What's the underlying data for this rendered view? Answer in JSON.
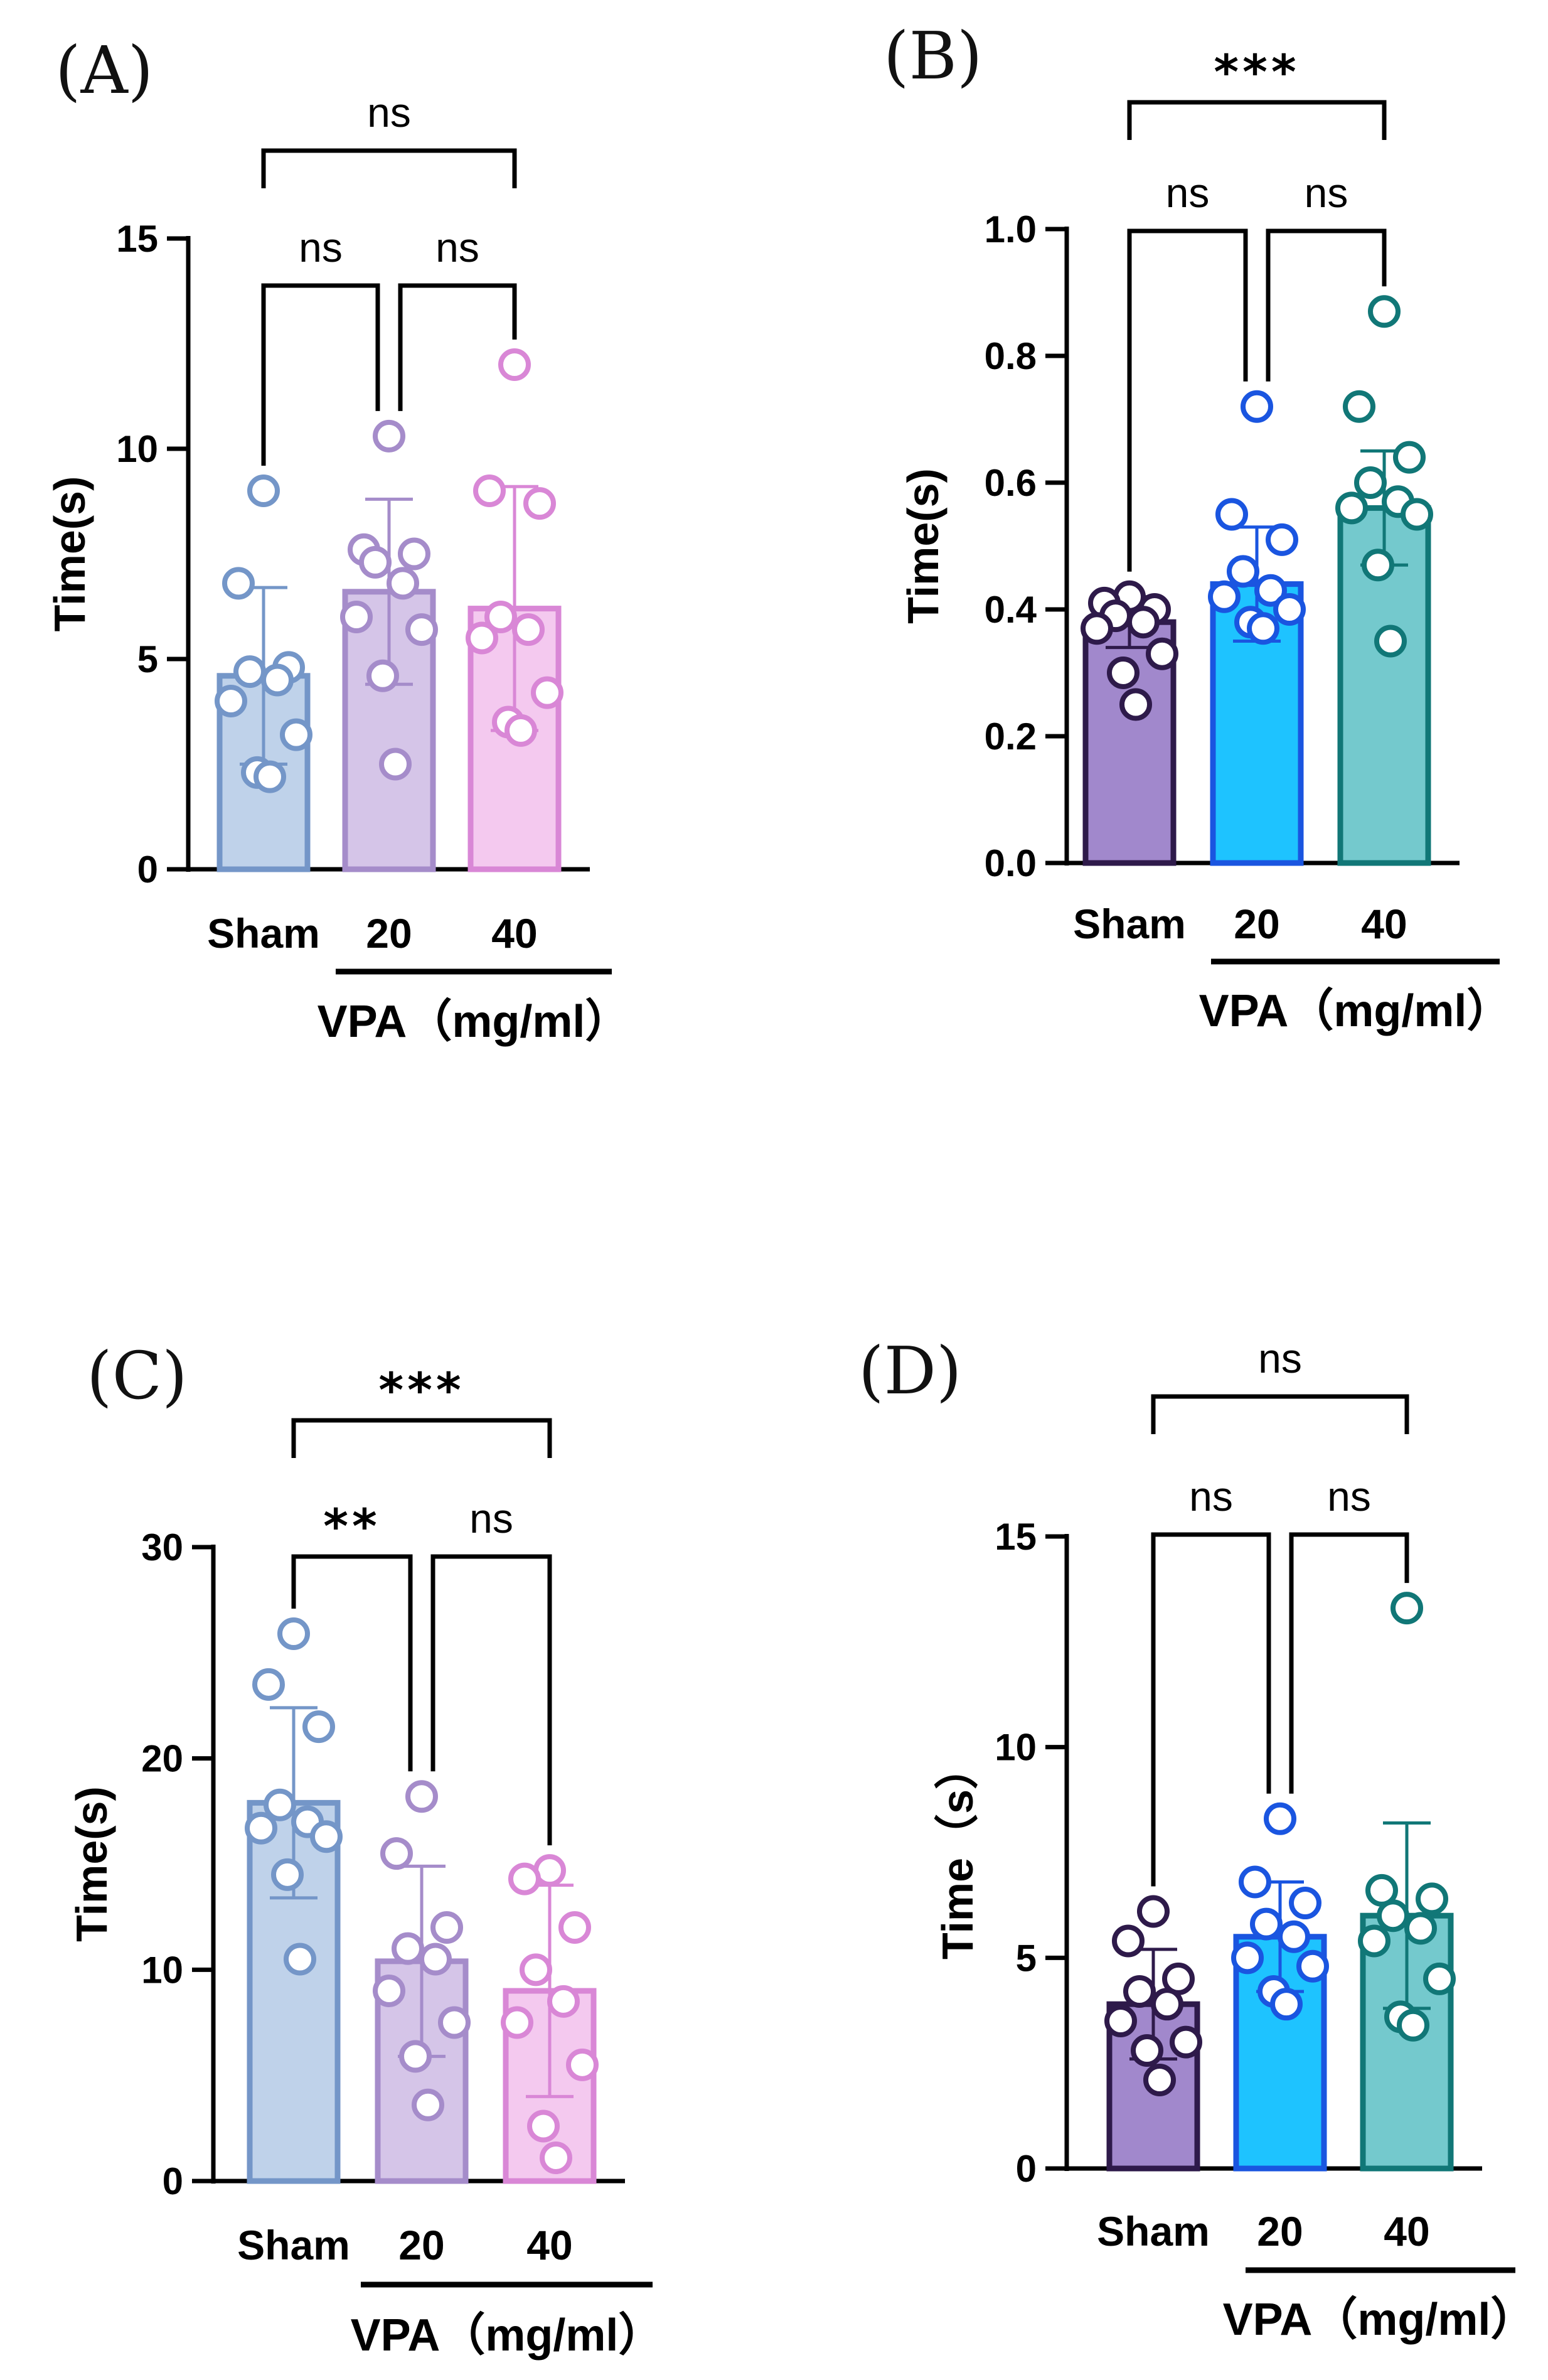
{
  "chart_data": [
    {
      "panel": "(A)",
      "type": "bar",
      "ylabel": "Time(s)",
      "ylim": [
        0,
        15
      ],
      "yticks": [
        "0",
        "5",
        "10",
        "15"
      ],
      "categories": [
        "Sham",
        "20",
        "40"
      ],
      "group_label": "VPA（mg/ml）",
      "means": [
        4.6,
        6.6,
        6.2
      ],
      "sd": [
        2.1,
        2.2,
        2.9
      ],
      "points": [
        [
          9.0,
          6.8,
          4.8,
          4.7,
          4.5,
          4.0,
          3.2,
          2.3,
          2.2
        ],
        [
          10.3,
          7.6,
          7.5,
          7.3,
          6.8,
          6.0,
          5.7,
          4.6,
          2.5
        ],
        [
          12.0,
          9.0,
          8.7,
          6.0,
          5.7,
          5.5,
          4.2,
          3.5,
          3.3
        ]
      ],
      "significance": [
        {
          "from": 0,
          "to": 1,
          "label": "ns"
        },
        {
          "from": 1,
          "to": 2,
          "label": "ns"
        },
        {
          "from": 0,
          "to": 2,
          "label": "ns"
        }
      ],
      "colors": {
        "fill": [
          "#bfd2ea",
          "#d5c5e8",
          "#f4c9ef"
        ],
        "stroke": [
          "#7496c8",
          "#a58cca",
          "#d987d6"
        ]
      }
    },
    {
      "panel": "(B)",
      "type": "bar",
      "ylabel": "Time(s)",
      "ylim": [
        0,
        1.0
      ],
      "yticks": [
        "0.0",
        "0.2",
        "0.4",
        "0.6",
        "0.8",
        "1.0"
      ],
      "categories": [
        "Sham",
        "20",
        "40"
      ],
      "group_label": "VPA（mg/ml）",
      "means": [
        0.38,
        0.44,
        0.56
      ],
      "sd": [
        0.04,
        0.09,
        0.09
      ],
      "points": [
        [
          0.42,
          0.41,
          0.4,
          0.39,
          0.38,
          0.37,
          0.33,
          0.3,
          0.25
        ],
        [
          0.72,
          0.55,
          0.51,
          0.46,
          0.43,
          0.42,
          0.4,
          0.38,
          0.37
        ],
        [
          0.87,
          0.72,
          0.64,
          0.6,
          0.57,
          0.56,
          0.55,
          0.47,
          0.35
        ]
      ],
      "significance": [
        {
          "from": 0,
          "to": 1,
          "label": "ns"
        },
        {
          "from": 1,
          "to": 2,
          "label": "ns"
        },
        {
          "from": 0,
          "to": 2,
          "label": "***"
        }
      ],
      "colors": {
        "fill": [
          "#a188cc",
          "#1ec3ff",
          "#74c9cd"
        ],
        "stroke": [
          "#2e1a4a",
          "#1a55e0",
          "#117777"
        ]
      }
    },
    {
      "panel": "(C)",
      "type": "bar",
      "ylabel": "Time(s)",
      "ylim": [
        0,
        30
      ],
      "yticks": [
        "0",
        "10",
        "20",
        "30"
      ],
      "categories": [
        "Sham",
        "20",
        "40"
      ],
      "group_label": "VPA（mg/ml）",
      "means": [
        17.9,
        10.4,
        9.0
      ],
      "sd": [
        4.5,
        4.5,
        5.0
      ],
      "points": [
        [
          25.9,
          23.5,
          21.5,
          17.8,
          17.0,
          16.7,
          16.3,
          14.5,
          10.5
        ],
        [
          18.2,
          15.5,
          12.0,
          11.0,
          10.5,
          9.0,
          7.5,
          5.9,
          3.6
        ],
        [
          14.7,
          14.3,
          12.0,
          10.0,
          8.5,
          7.5,
          5.5,
          2.6,
          1.1
        ]
      ],
      "significance": [
        {
          "from": 0,
          "to": 1,
          "label": "**"
        },
        {
          "from": 1,
          "to": 2,
          "label": "ns"
        },
        {
          "from": 0,
          "to": 2,
          "label": "***"
        }
      ],
      "colors": {
        "fill": [
          "#bfd2ea",
          "#d5c5e8",
          "#f4c9ef"
        ],
        "stroke": [
          "#7496c8",
          "#a58cca",
          "#d987d6"
        ]
      }
    },
    {
      "panel": "(D)",
      "type": "bar",
      "ylabel": "Time（s）",
      "ylim": [
        0,
        15
      ],
      "yticks": [
        "0",
        "5",
        "10",
        "15"
      ],
      "categories": [
        "Sham",
        "20",
        "40"
      ],
      "group_label": "VPA（mg/ml）",
      "means": [
        3.9,
        5.5,
        6.0
      ],
      "sd": [
        1.3,
        1.3,
        2.2
      ],
      "points": [
        [
          6.1,
          5.4,
          4.5,
          4.2,
          3.9,
          3.5,
          3.0,
          2.8,
          2.1
        ],
        [
          8.3,
          6.8,
          6.3,
          5.8,
          5.5,
          5.0,
          4.8,
          4.2,
          3.9
        ],
        [
          13.3,
          6.6,
          6.4,
          6.0,
          5.7,
          5.4,
          4.5,
          3.6,
          3.4
        ]
      ],
      "significance": [
        {
          "from": 0,
          "to": 1,
          "label": "ns"
        },
        {
          "from": 1,
          "to": 2,
          "label": "ns"
        },
        {
          "from": 0,
          "to": 2,
          "label": "ns"
        }
      ],
      "colors": {
        "fill": [
          "#a188cc",
          "#1ec3ff",
          "#74c9cd"
        ],
        "stroke": [
          "#2e1a4a",
          "#1a55e0",
          "#117777"
        ]
      }
    }
  ]
}
